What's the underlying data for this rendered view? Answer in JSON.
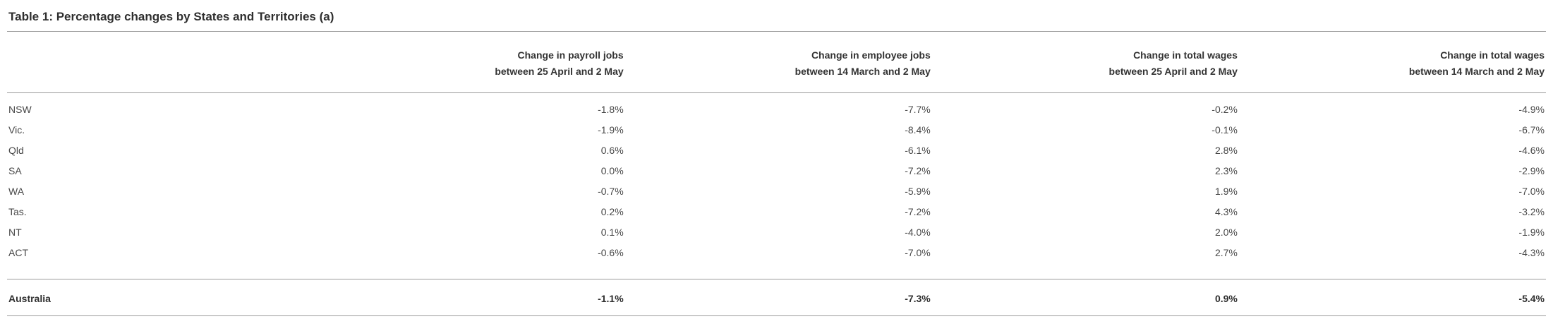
{
  "table": {
    "title": "Table 1: Percentage changes by States and Territories (a)",
    "headers": [
      {
        "line1": "Change in payroll jobs",
        "line2": "between 25 April and 2 May"
      },
      {
        "line1": "Change in employee jobs",
        "line2": "between 14 March and 2 May"
      },
      {
        "line1": "Change in total wages",
        "line2": "between 25 April and 2 May"
      },
      {
        "line1": "Change in total wages",
        "line2": "between 14 March and 2 May"
      }
    ],
    "rows": [
      {
        "label": "NSW",
        "values": [
          "-1.8%",
          "-7.7%",
          "-0.2%",
          "-4.9%"
        ]
      },
      {
        "label": "Vic.",
        "values": [
          "-1.9%",
          "-8.4%",
          "-0.1%",
          "-6.7%"
        ]
      },
      {
        "label": "Qld",
        "values": [
          "0.6%",
          "-6.1%",
          "2.8%",
          "-4.6%"
        ]
      },
      {
        "label": "SA",
        "values": [
          "0.0%",
          "-7.2%",
          "2.3%",
          "-2.9%"
        ]
      },
      {
        "label": "WA",
        "values": [
          "-0.7%",
          "-5.9%",
          "1.9%",
          "-7.0%"
        ]
      },
      {
        "label": "Tas.",
        "values": [
          "0.2%",
          "-7.2%",
          "4.3%",
          "-3.2%"
        ]
      },
      {
        "label": "NT",
        "values": [
          "0.1%",
          "-4.0%",
          "2.0%",
          "-1.9%"
        ]
      },
      {
        "label": "ACT",
        "values": [
          "-0.6%",
          "-7.0%",
          "2.7%",
          "-4.3%"
        ]
      }
    ],
    "total": {
      "label": "Australia",
      "values": [
        "-1.1%",
        "-7.3%",
        "0.9%",
        "-5.4%"
      ]
    }
  },
  "chart_data": {
    "type": "table",
    "title": "Table 1: Percentage changes by States and Territories (a)",
    "unit": "percent",
    "columns": [
      "",
      "Change in payroll jobs between 25 April and 2 May",
      "Change in employee jobs between 14 March and 2 May",
      "Change in total wages between 25 April and 2 May",
      "Change in total wages between 14 March and 2 May"
    ],
    "rows": [
      [
        "NSW",
        -1.8,
        -7.7,
        -0.2,
        -4.9
      ],
      [
        "Vic.",
        -1.9,
        -8.4,
        -0.1,
        -6.7
      ],
      [
        "Qld",
        0.6,
        -6.1,
        2.8,
        -4.6
      ],
      [
        "SA",
        0.0,
        -7.2,
        2.3,
        -2.9
      ],
      [
        "WA",
        -0.7,
        -5.9,
        1.9,
        -7.0
      ],
      [
        "Tas.",
        0.2,
        -7.2,
        4.3,
        -3.2
      ],
      [
        "NT",
        0.1,
        -4.0,
        2.0,
        -1.9
      ],
      [
        "ACT",
        -0.6,
        -7.0,
        2.7,
        -4.3
      ],
      [
        "Australia",
        -1.1,
        -7.3,
        0.9,
        -5.4
      ]
    ]
  }
}
